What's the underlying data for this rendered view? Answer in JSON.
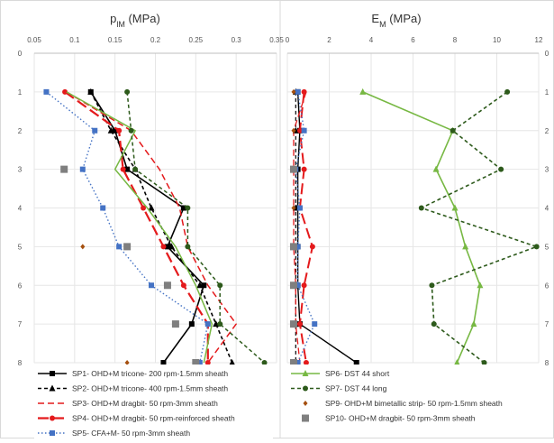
{
  "chart_data": [
    {
      "type": "line",
      "title_main": "p",
      "title_sub": "lM",
      "title_unit": " (MPa)",
      "xlim": [
        0.05,
        0.35
      ],
      "xticks": [
        "0.05",
        "0.1",
        "0.15",
        "0.2",
        "0.25",
        "0.3",
        "0.35"
      ],
      "ylim": [
        0,
        8
      ],
      "yticks": [
        "0",
        "1",
        "2",
        "3",
        "4",
        "5",
        "6",
        "7",
        "8"
      ],
      "y_inverted": true,
      "series": [
        {
          "name": "SP1- OHD+M tricone- 200 rpm-1.5mm sheath",
          "color": "#000000",
          "dash": "",
          "marker": "square",
          "marker_color": "#000000",
          "width": 1.6,
          "points": [
            [
              0.12,
              1
            ],
            [
              0.15,
              2
            ],
            [
              0.165,
              3
            ],
            [
              0.235,
              4
            ],
            [
              0.215,
              5
            ],
            [
              0.26,
              6
            ],
            [
              0.245,
              7
            ],
            [
              0.21,
              8
            ]
          ]
        },
        {
          "name": "SP2- OHD+M tricone- 400 rpm-1.5mm sheath",
          "color": "#000000",
          "dash": "4,3",
          "marker": "triangle",
          "marker_color": "#000000",
          "width": 1.6,
          "points": [
            [
              0.12,
              1
            ],
            [
              0.145,
              2
            ],
            [
              0.175,
              3
            ],
            [
              0.195,
              4
            ],
            [
              0.22,
              5
            ],
            [
              0.255,
              6
            ],
            [
              0.275,
              7
            ],
            [
              0.295,
              8
            ]
          ]
        },
        {
          "name": "SP3- OHD+M dragbit- 50 rpm-3mm sheath",
          "color": "#e41a1c",
          "dash": "7,4",
          "marker": "none",
          "marker_color": "#e41a1c",
          "width": 1.5,
          "points": [
            [
              0.09,
              1
            ],
            [
              0.17,
              2
            ],
            [
              0.205,
              3
            ],
            [
              0.23,
              4
            ],
            [
              0.24,
              5
            ],
            [
              0.265,
              6
            ],
            [
              0.3,
              7
            ],
            [
              0.265,
              8
            ]
          ]
        },
        {
          "name": "SP4- OHD+M dragbit- 50 rpm-reinforced sheath",
          "color": "#e41a1c",
          "dash": "12,5",
          "marker": "circle",
          "marker_color": "#e41a1c",
          "width": 2.2,
          "points": [
            [
              0.088,
              1
            ],
            [
              0.155,
              2
            ],
            [
              0.16,
              3
            ],
            [
              0.185,
              4
            ],
            [
              0.21,
              5
            ],
            [
              0.235,
              6
            ],
            [
              0.265,
              7
            ],
            [
              0.265,
              8
            ]
          ]
        },
        {
          "name": "SP5- CFA+M- 50 rpm-3mm sheath",
          "color": "#4472c4",
          "dash": "1.5,2.5",
          "marker": "square",
          "marker_color": "#4472c4",
          "width": 1.4,
          "points": [
            [
              0.065,
              1
            ],
            [
              0.125,
              2
            ],
            [
              0.11,
              3
            ],
            [
              0.135,
              4
            ],
            [
              0.155,
              5
            ],
            [
              0.195,
              6
            ],
            [
              0.265,
              7
            ],
            [
              0.255,
              8
            ]
          ]
        },
        {
          "name": "",
          "color": "#77b843",
          "dash": "",
          "marker": "none",
          "marker_color": "#77b843",
          "width": 1.5,
          "points": [
            [
              0.09,
              1
            ],
            [
              0.175,
              2
            ],
            [
              0.15,
              3
            ],
            [
              0.19,
              4
            ],
            [
              0.225,
              5
            ],
            [
              0.25,
              6
            ],
            [
              0.27,
              7
            ],
            [
              0.26,
              8
            ]
          ]
        },
        {
          "name": "",
          "color": "#2d5a1b",
          "dash": "4,3",
          "marker": "circle",
          "marker_color": "#2d5a1b",
          "width": 1.5,
          "points": [
            [
              0.165,
              1
            ],
            [
              0.17,
              2
            ],
            [
              0.175,
              3
            ],
            [
              0.24,
              4
            ],
            [
              0.24,
              5
            ],
            [
              0.28,
              6
            ],
            [
              0.28,
              7
            ],
            [
              0.335,
              8
            ]
          ]
        },
        {
          "name": "",
          "color": "#a5500f",
          "dash": "",
          "marker": "diamond",
          "marker_color": "#a5500f",
          "width": 0,
          "points": [
            [
              0.11,
              5
            ],
            [
              0.165,
              8
            ]
          ]
        },
        {
          "name": "",
          "color": "#7f7f7f",
          "dash": "",
          "marker": "bigsquare",
          "marker_color": "#7f7f7f",
          "width": 0,
          "points": [
            [
              0.087,
              3
            ],
            [
              0.165,
              5
            ],
            [
              0.215,
              6
            ],
            [
              0.225,
              7
            ],
            [
              0.25,
              8
            ]
          ]
        }
      ]
    },
    {
      "type": "line",
      "title_main": "E",
      "title_sub": "M",
      "title_unit": " (MPa)",
      "xlim": [
        0,
        12
      ],
      "xticks": [
        "0",
        "2",
        "4",
        "6",
        "8",
        "10",
        "12"
      ],
      "ylim": [
        0,
        8
      ],
      "yticks": [
        "0",
        "1",
        "2",
        "3",
        "4",
        "5",
        "6",
        "7",
        "8"
      ],
      "y_inverted": true,
      "series": [
        {
          "name": "SP6- DST 44 short",
          "color": "#77b843",
          "dash": "",
          "marker": "triangle",
          "marker_color": "#77b843",
          "width": 1.6,
          "points": [
            [
              3.6,
              1
            ],
            [
              7.9,
              2
            ],
            [
              7.1,
              3
            ],
            [
              8.0,
              4
            ],
            [
              8.5,
              5
            ],
            [
              9.2,
              6
            ],
            [
              8.9,
              7
            ],
            [
              8.1,
              8
            ]
          ]
        },
        {
          "name": "SP7- DST 44 long",
          "color": "#2d5a1b",
          "dash": "4,3",
          "marker": "circle",
          "marker_color": "#2d5a1b",
          "width": 1.6,
          "points": [
            [
              10.5,
              1
            ],
            [
              7.9,
              2
            ],
            [
              10.2,
              3
            ],
            [
              6.4,
              4
            ],
            [
              11.9,
              5
            ],
            [
              6.9,
              6
            ],
            [
              7.0,
              7
            ],
            [
              9.4,
              8
            ]
          ]
        },
        {
          "name": "",
          "color": "#000000",
          "dash": "",
          "marker": "square",
          "marker_color": "#000000",
          "width": 1.4,
          "points": [
            [
              0.5,
              1
            ],
            [
              0.6,
              2
            ],
            [
              0.5,
              3
            ],
            [
              0.5,
              4
            ],
            [
              0.5,
              5
            ],
            [
              0.5,
              6
            ],
            [
              0.6,
              7
            ],
            [
              3.3,
              8
            ]
          ]
        },
        {
          "name": "",
          "color": "#000000",
          "dash": "4,3",
          "marker": "triangle",
          "marker_color": "#000000",
          "width": 1.2,
          "points": [
            [
              0.4,
              1
            ],
            [
              0.4,
              2
            ],
            [
              0.4,
              3
            ],
            [
              0.4,
              4
            ],
            [
              0.4,
              5
            ],
            [
              0.4,
              6
            ],
            [
              0.4,
              7
            ],
            [
              0.4,
              8
            ]
          ]
        },
        {
          "name": "",
          "color": "#e41a1c",
          "dash": "7,4",
          "marker": "none",
          "marker_color": "#e41a1c",
          "width": 1.3,
          "points": [
            [
              0.9,
              1
            ],
            [
              0.3,
              2
            ],
            [
              0.3,
              3
            ],
            [
              0.3,
              4
            ],
            [
              0.3,
              5
            ],
            [
              0.4,
              6
            ],
            [
              0.4,
              7
            ],
            [
              0.6,
              8
            ]
          ]
        },
        {
          "name": "",
          "color": "#e41a1c",
          "dash": "12,5",
          "marker": "circle",
          "marker_color": "#e41a1c",
          "width": 2.0,
          "points": [
            [
              0.8,
              1
            ],
            [
              0.6,
              2
            ],
            [
              0.8,
              3
            ],
            [
              0.6,
              4
            ],
            [
              1.2,
              5
            ],
            [
              0.8,
              6
            ],
            [
              0.6,
              7
            ],
            [
              0.9,
              8
            ]
          ]
        },
        {
          "name": "",
          "color": "#4472c4",
          "dash": "1.5,2.5",
          "marker": "square",
          "marker_color": "#4472c4",
          "width": 1.4,
          "points": [
            [
              0.5,
              1
            ],
            [
              0.8,
              2
            ],
            [
              0.4,
              3
            ],
            [
              0.6,
              4
            ],
            [
              0.5,
              5
            ],
            [
              0.5,
              6
            ],
            [
              1.3,
              7
            ],
            [
              0.5,
              8
            ]
          ]
        },
        {
          "name": "SP9- OHD+M bimetallic strip- 50 rpm-1.5mm sheath",
          "color": "#a5500f",
          "dash": "",
          "marker": "diamond",
          "marker_color": "#a5500f",
          "width": 0,
          "points": [
            [
              0.3,
              1
            ],
            [
              0.3,
              2
            ],
            [
              0.3,
              4
            ],
            [
              0.3,
              5
            ],
            [
              0.3,
              6
            ],
            [
              0.3,
              7
            ],
            [
              0.3,
              8
            ]
          ]
        },
        {
          "name": "SP10- OHD+M dragbit- 50 rpm-3mm sheath",
          "color": "#7f7f7f",
          "dash": "",
          "marker": "bigsquare",
          "marker_color": "#7f7f7f",
          "width": 0,
          "points": [
            [
              0.3,
              3
            ],
            [
              0.3,
              5
            ],
            [
              0.3,
              6
            ],
            [
              0.3,
              7
            ],
            [
              0.3,
              8
            ]
          ]
        }
      ]
    }
  ]
}
